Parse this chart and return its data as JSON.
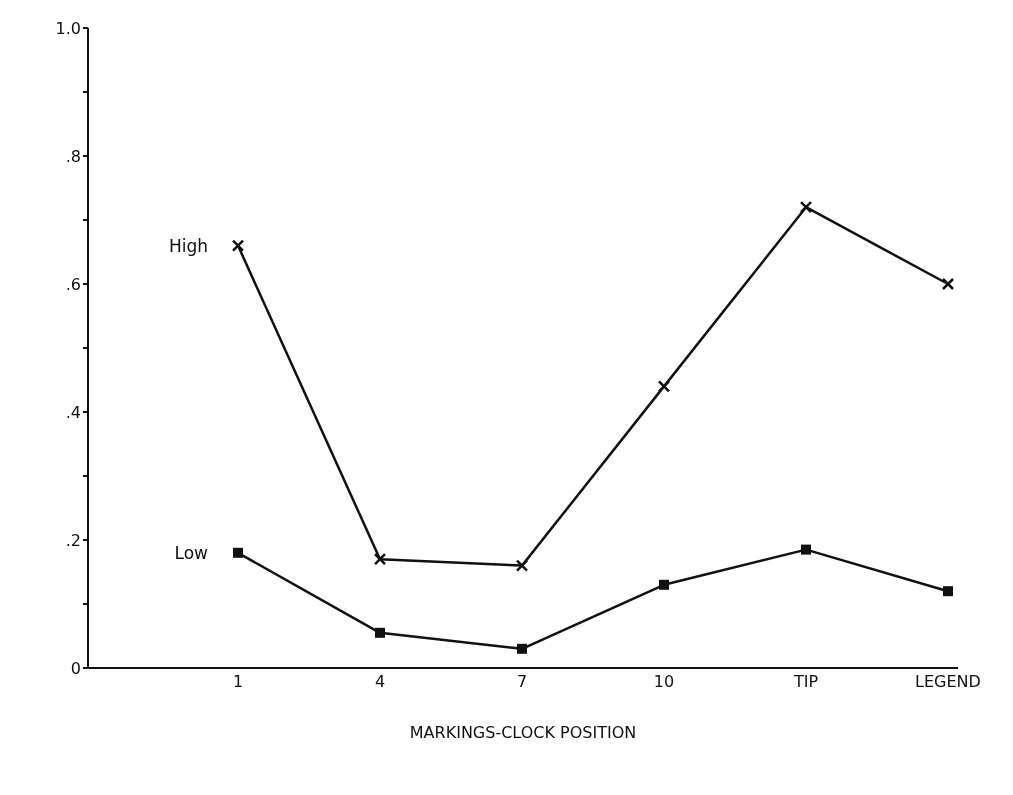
{
  "chart_data": {
    "type": "line",
    "xlabel": "MARKINGS-CLOCK POSITION",
    "categories": [
      "1",
      "4",
      "7",
      "10",
      "TIP",
      "LEGEND"
    ],
    "series": [
      {
        "name": "High",
        "color": "#111111",
        "marker": "cross",
        "values": [
          0.66,
          0.17,
          0.16,
          0.44,
          0.72,
          0.6
        ]
      },
      {
        "name": "Low",
        "color": "#111111",
        "marker": "square",
        "values": [
          0.18,
          0.055,
          0.03,
          0.13,
          0.185,
          0.12
        ]
      }
    ],
    "ylim": [
      0,
      1
    ],
    "yticks": [
      {
        "value": 0,
        "label": "0"
      },
      {
        "value": 0.1,
        "label": null
      },
      {
        "value": 0.2,
        "label": ".2"
      },
      {
        "value": 0.3,
        "label": null
      },
      {
        "value": 0.4,
        "label": ".4"
      },
      {
        "value": 0.5,
        "label": null
      },
      {
        "value": 0.6,
        "label": ".6"
      },
      {
        "value": 0.7,
        "label": null
      },
      {
        "value": 0.8,
        "label": ".8"
      },
      {
        "value": 0.9,
        "label": null
      },
      {
        "value": 1,
        "label": "1.0"
      }
    ],
    "grid": false,
    "legend": false,
    "line_style": "solid"
  }
}
